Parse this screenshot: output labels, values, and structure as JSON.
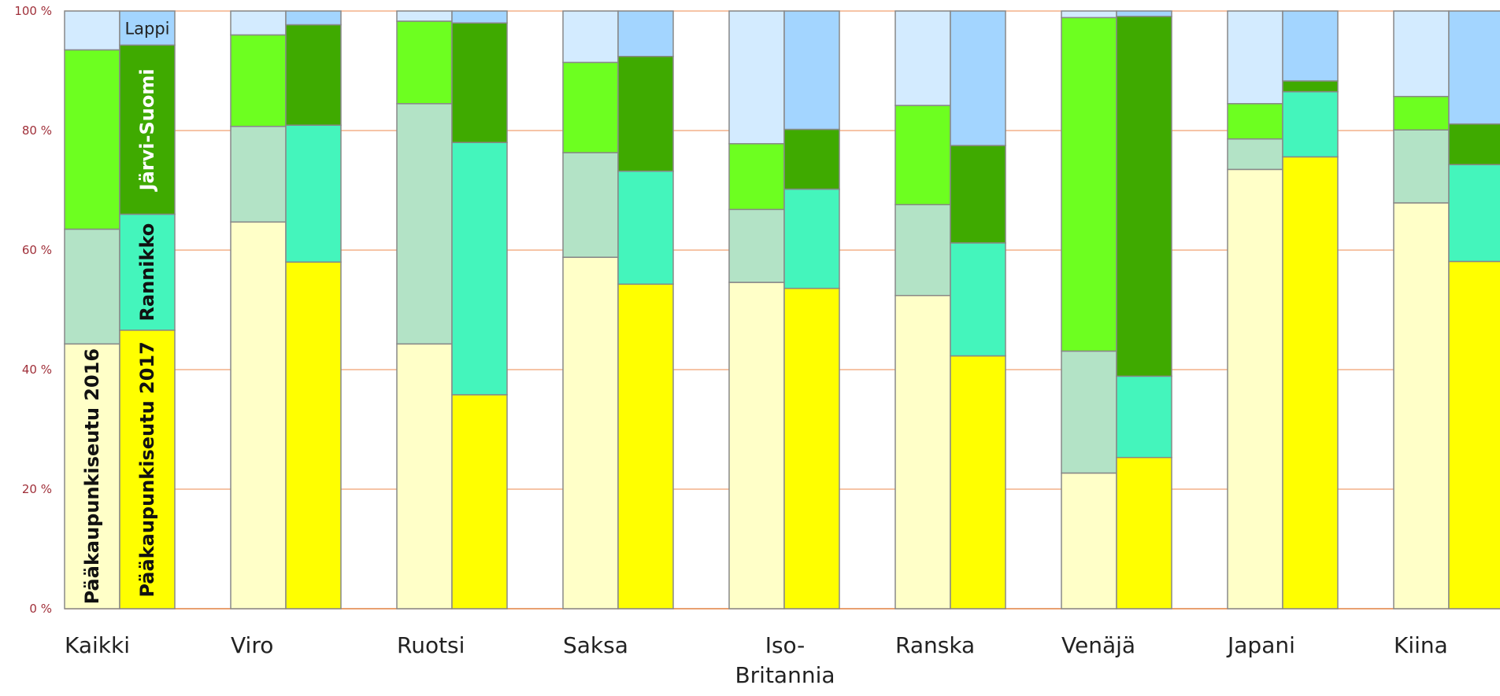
{
  "chart_data": {
    "type": "bar",
    "stacked": "percent",
    "ylim": [
      0,
      100
    ],
    "yticks": [
      "0 %",
      "20 %",
      "40 %",
      "60 %",
      "80 %",
      "100 %"
    ],
    "grid": true,
    "categories": [
      "Kaikki",
      "Viro",
      "Ruotsi",
      "Saksa",
      "Iso-\nBritannia",
      "Ranska",
      "Venäjä",
      "Japani",
      "Kiina"
    ],
    "regions": [
      {
        "name": "Pääkaupunkiseutu",
        "color2016": "#ffffc8",
        "color2017": "#ffff00"
      },
      {
        "name": "Rannikko",
        "color2016": "#b3e3c6",
        "color2017": "#44f5bc"
      },
      {
        "name": "Järvi-Suomi",
        "color2016": "#6dff20",
        "color2017": "#3faa00"
      },
      {
        "name": "Lappi",
        "color2016": "#d3ebff",
        "color2017": "#a3d5ff"
      }
    ],
    "series": [
      {
        "year": "2016",
        "values": {
          "Pääkaupunkiseutu": [
            44.3,
            64.7,
            44.3,
            58.8,
            54.6,
            52.4,
            22.7,
            73.5,
            67.9
          ],
          "Rannikko": [
            19.2,
            16.0,
            40.2,
            17.5,
            12.2,
            15.2,
            20.4,
            5.1,
            12.2
          ],
          "Järvi-Suomi": [
            30.0,
            15.3,
            13.8,
            15.1,
            11.0,
            16.6,
            55.8,
            5.9,
            5.6
          ],
          "Lappi": [
            6.5,
            4.0,
            1.7,
            8.6,
            22.2,
            15.8,
            1.1,
            15.5,
            14.3
          ]
        }
      },
      {
        "year": "2017",
        "values": {
          "Pääkaupunkiseutu": [
            46.6,
            58.0,
            35.8,
            54.3,
            53.6,
            42.3,
            25.3,
            75.6,
            58.1
          ],
          "Rannikko": [
            19.4,
            22.9,
            42.2,
            18.9,
            16.6,
            18.9,
            13.6,
            10.9,
            16.2
          ],
          "Järvi-Suomi": [
            28.3,
            16.8,
            20.0,
            19.2,
            10.0,
            16.3,
            60.2,
            1.8,
            6.8
          ],
          "Lappi": [
            5.7,
            2.3,
            2.0,
            7.6,
            19.8,
            22.5,
            0.9,
            11.7,
            18.9
          ]
        }
      }
    ],
    "bar_labels": {
      "Pääkaupunkiseutu 2016": "Pääkaupunkiseutu 2016",
      "Pääkaupunkiseutu 2017": "Pääkaupunkiseutu 2017",
      "Rannikko": "Rannikko",
      "Järvi-Suomi": "Järvi-Suomi",
      "Lappi": "Lappi"
    },
    "colors": {
      "grid": "#f0a070",
      "axis": "#e08040",
      "bar_border": "#888888"
    }
  }
}
